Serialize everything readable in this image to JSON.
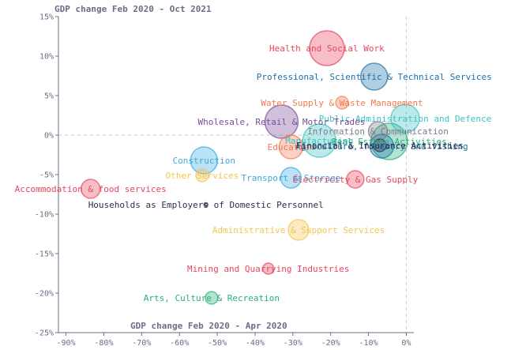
{
  "chart_data": {
    "type": "scatter",
    "title": "",
    "xlabel": "GDP change Feb 2020 - Apr 2020",
    "ylabel": "GDP change Feb 2020 - Oct 2021",
    "xlim": [
      -92,
      2
    ],
    "ylim": [
      -25,
      15
    ],
    "x_ticks": [
      "-90%",
      "-80%",
      "-70%",
      "-60%",
      "-50%",
      "-40%",
      "-30%",
      "-20%",
      "-10%",
      "0%"
    ],
    "y_ticks": [
      "15%",
      "10%",
      "5%",
      "0%",
      "-5%",
      "-10%",
      "-15%",
      "-20%",
      "-25%"
    ],
    "zero_lines": "dashed",
    "legend": "none",
    "points": [
      {
        "label": "Health and Social Work",
        "x": -21,
        "y": 11,
        "size": 2.2,
        "color": "#e8455e"
      },
      {
        "label": "Professional, Scientific & Technical Services",
        "x": -8.5,
        "y": 7.4,
        "size": 1.7,
        "color": "#1d6fa8"
      },
      {
        "label": "Water Supply & Waste Management",
        "x": -17,
        "y": 4.1,
        "size": 0.8,
        "color": "#f07a50"
      },
      {
        "label": "Public Administration and Defence",
        "x": -0.3,
        "y": 2.1,
        "size": 1.8,
        "color": "#3fc1c0"
      },
      {
        "label": "Wholesale, Retail & Motor Trades",
        "x": -33,
        "y": 1.7,
        "size": 2.1,
        "color": "#7b4a9a"
      },
      {
        "label": "Information & Communication",
        "x": -7.5,
        "y": 0.5,
        "size": 1.2,
        "color": "#7a7a8f"
      },
      {
        "label": "Manufacturing",
        "x": -23,
        "y": -0.7,
        "size": 2.1,
        "color": "#3fc1c0"
      },
      {
        "label": "Real Estate Activities",
        "x": -4.5,
        "y": -0.8,
        "size": 2.3,
        "color": "#27b07a"
      },
      {
        "label": "Education",
        "x": -30.5,
        "y": -1.5,
        "size": 1.5,
        "color": "#f07a50"
      },
      {
        "label": "Agriculture, forestry and fishing",
        "x": -6.5,
        "y": -1.4,
        "size": 1.5,
        "color": "#1d6fa8"
      },
      {
        "label": "Financial & Insurance Activities",
        "x": -7,
        "y": -1.3,
        "size": 0.8,
        "color": "#2b2d4a"
      },
      {
        "label": "Construction",
        "x": -53.5,
        "y": -3.2,
        "size": 1.7,
        "color": "#3aa8e0"
      },
      {
        "label": "Other Services",
        "x": -54,
        "y": -5.1,
        "size": 0.8,
        "color": "#f3c64f"
      },
      {
        "label": "Transport & Storage",
        "x": -30.5,
        "y": -5.4,
        "size": 1.3,
        "color": "#3aa8e0"
      },
      {
        "label": "Electricity & Gas Supply",
        "x": -13.5,
        "y": -5.6,
        "size": 1.1,
        "color": "#e8455e"
      },
      {
        "label": "Accommodation & food services",
        "x": -83.5,
        "y": -6.8,
        "size": 1.2,
        "color": "#e8455e"
      },
      {
        "label": "Households as Employers of Domestic Personnel",
        "x": -53,
        "y": -8.8,
        "size": 0.2,
        "color": "#2b2d4a"
      },
      {
        "label": "Administrative & Support Services",
        "x": -28.5,
        "y": -12,
        "size": 1.3,
        "color": "#f3c64f"
      },
      {
        "label": "Mining and Quarrying Industries",
        "x": -36.5,
        "y": -16.9,
        "size": 0.7,
        "color": "#e8455e"
      },
      {
        "label": "Arts, Culture & Recreation",
        "x": -51.5,
        "y": -20.6,
        "size": 0.8,
        "color": "#27b07a"
      }
    ]
  }
}
